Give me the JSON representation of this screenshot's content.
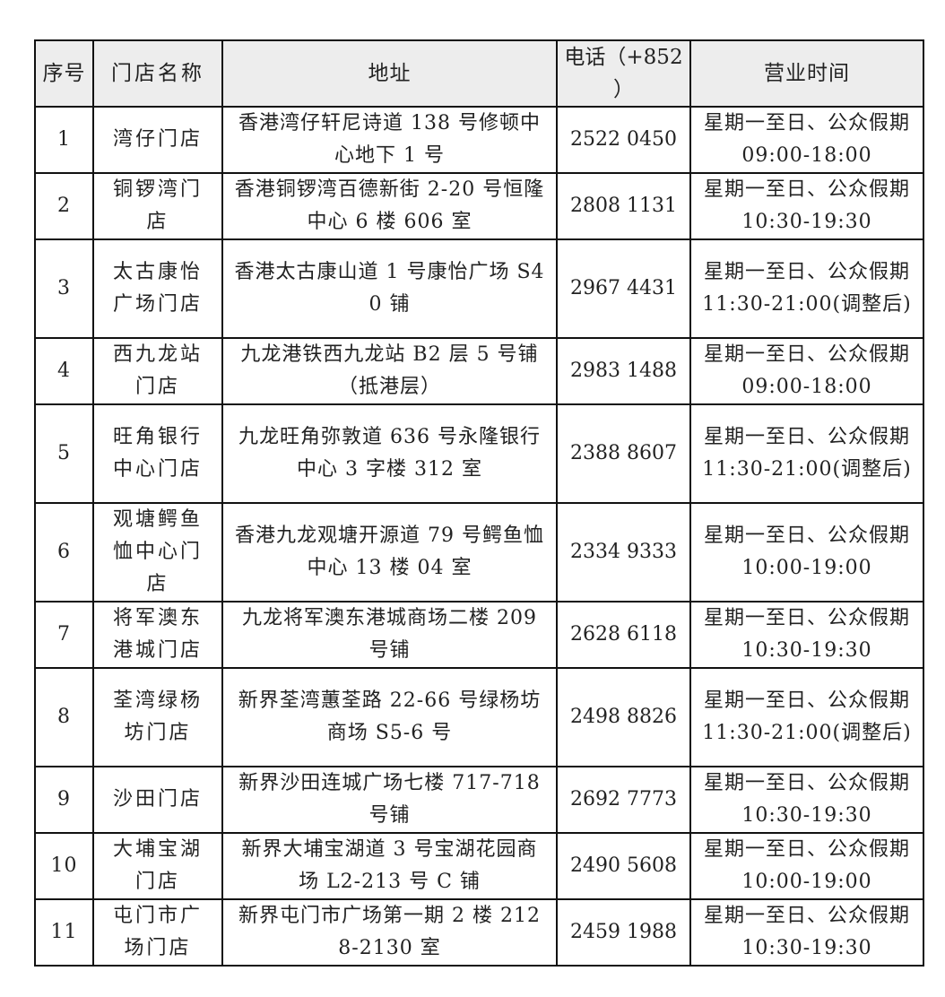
{
  "header": {
    "index": "序号",
    "name": "门店名称",
    "address": "地址",
    "phone": "电话（+852 ）",
    "hours": "营业时间"
  },
  "rows": [
    {
      "index": "1",
      "name": "湾仔门店",
      "address": "香港湾仔轩尼诗道 138 号修顿中心地下 1 号",
      "phone": "2522 0450",
      "hours": "星期一至日、公众假期 09:00-18:00"
    },
    {
      "index": "2",
      "name": "铜锣湾门店",
      "address": "香港铜锣湾百德新街 2-20 号恒隆中心 6 楼 606 室",
      "phone": "2808 1131",
      "hours": "星期一至日、公众假期 10:30-19:30"
    },
    {
      "index": "3",
      "name": "太古康怡广场门店",
      "address": "香港太古康山道 1 号康怡广场 S40 铺",
      "phone": "2967 4431",
      "hours": "星期一至日、公众假期 11:30-21:00(调整后)"
    },
    {
      "index": "4",
      "name": "西九龙站门店",
      "address": "九龙港铁西九龙站 B2 层 5 号铺 （抵港层）",
      "phone": "2983 1488",
      "hours": "星期一至日、公众假期 09:00-18:00"
    },
    {
      "index": "5",
      "name": "旺角银行中心门店",
      "address": "九龙旺角弥敦道 636 号永隆银行中心 3 字楼 312 室",
      "phone": "2388 8607",
      "hours": "星期一至日、公众假期 11:30-21:00(调整后)"
    },
    {
      "index": "6",
      "name": "观塘鳄鱼恤中心门店",
      "address": "香港九龙观塘开源道 79 号鳄鱼恤中心 13 楼 04 室",
      "phone": "2334 9333",
      "hours": "星期一至日、公众假期 10:00-19:00"
    },
    {
      "index": "7",
      "name": "将军澳东港城门店",
      "address": "九龙将军澳东港城商场二楼 209 号铺",
      "phone": "2628 6118",
      "hours": "星期一至日、公众假期 10:30-19:30"
    },
    {
      "index": "8",
      "name": "荃湾绿杨坊门店",
      "address": "新界荃湾蕙荃路 22-66 号绿杨坊商场 S5-6 号",
      "phone": "2498 8826",
      "hours": "星期一至日、公众假期 11:30-21:00(调整后)"
    },
    {
      "index": "9",
      "name": "沙田门店",
      "address": "新界沙田连城广场七楼 717-718 号铺",
      "phone": "2692 7773",
      "hours": "星期一至日、公众假期 10:30-19:30"
    },
    {
      "index": "10",
      "name": "大埔宝湖门店",
      "address": "新界大埔宝湖道 3 号宝湖花园商场 L2-213 号 C 铺",
      "phone": "2490 5608",
      "hours": "星期一至日、公众假期 10:00-19:00"
    },
    {
      "index": "11",
      "name": "屯门市广场门店",
      "address": "新界屯门市广场第一期 2 楼 2128-2130 室",
      "phone": "2459 1988",
      "hours": "星期一至日、公众假期 10:30-19:30"
    }
  ]
}
